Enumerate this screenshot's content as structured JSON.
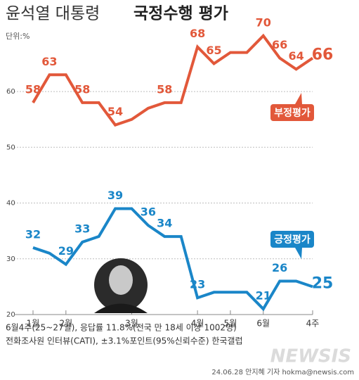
{
  "chart_data": {
    "type": "line",
    "title": "윤석열 대통령",
    "title_bold": "국정수행 평가",
    "unit": "단위:%",
    "categories": [
      "1월",
      null,
      "2월",
      null,
      null,
      null,
      "3월",
      null,
      null,
      null,
      "4월",
      null,
      "5월",
      null,
      "6월",
      null,
      null,
      "4주"
    ],
    "ylim": [
      20,
      72
    ],
    "yticks": [
      20,
      30,
      40,
      50,
      60
    ],
    "grid": true,
    "series": [
      {
        "name": "부정평가",
        "color": "#e2583a",
        "values": [
          58,
          63,
          63,
          58,
          58,
          54,
          55,
          57,
          58,
          58,
          68,
          65,
          67,
          67,
          70,
          66,
          64,
          66
        ],
        "value_labels": [
          "58",
          "63",
          null,
          "58",
          null,
          "54",
          null,
          null,
          "58",
          null,
          "68",
          "65",
          null,
          null,
          "70",
          "66",
          "64",
          "66"
        ]
      },
      {
        "name": "긍정평가",
        "color": "#1a86c8",
        "values": [
          32,
          31,
          29,
          33,
          34,
          39,
          39,
          36,
          34,
          34,
          23,
          24,
          24,
          24,
          21,
          26,
          26,
          25
        ],
        "value_labels": [
          "32",
          null,
          "29",
          "33",
          null,
          "39",
          null,
          "36",
          "34",
          null,
          "23",
          null,
          null,
          null,
          "21",
          "26",
          null,
          "25"
        ]
      }
    ],
    "notes": [
      "6월4주(25~27일), 응답률 11.8%(전국 만 18세 이상 1002명)",
      "전화조사원 인터뷰(CATI), ±3.1%포인트(95%신뢰수준)  한국갤럽"
    ],
    "credit": "24.06.28 안지혜 기자 hokma@newsis.com",
    "watermark": "NEWSIS"
  }
}
